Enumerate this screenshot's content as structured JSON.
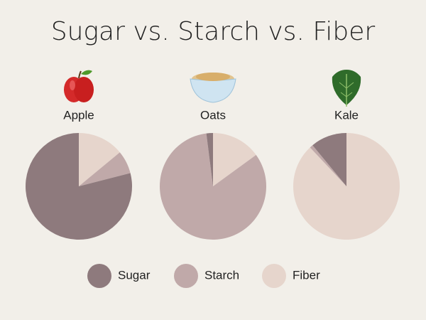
{
  "title": "Sugar vs. Starch vs. Fiber",
  "chart_data": [
    {
      "type": "pie",
      "title": "Apple",
      "categories": [
        "Sugar",
        "Starch",
        "Fiber"
      ],
      "values": [
        79,
        7,
        14
      ],
      "colors": [
        "#8e7a7d",
        "#c0a9a9",
        "#e6d5cc"
      ]
    },
    {
      "type": "pie",
      "title": "Oats",
      "categories": [
        "Sugar",
        "Starch",
        "Fiber"
      ],
      "values": [
        2,
        83,
        15
      ],
      "colors": [
        "#8e7a7d",
        "#c0a9a9",
        "#e6d5cc"
      ]
    },
    {
      "type": "pie",
      "title": "Kale",
      "categories": [
        "Sugar",
        "Starch",
        "Fiber"
      ],
      "values": [
        11,
        1,
        88
      ],
      "colors": [
        "#8e7a7d",
        "#c0a9a9",
        "#e6d5cc"
      ]
    }
  ]
}
